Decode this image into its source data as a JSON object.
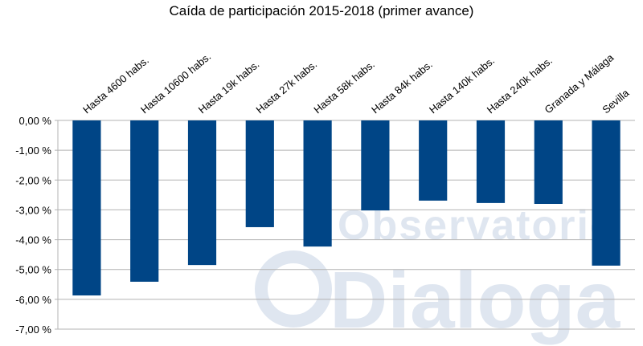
{
  "chart_data": {
    "type": "bar",
    "title": "Caída de participación 2015-2018 (primer avance)",
    "categories": [
      "Hasta 4600 habs.",
      "Hasta 10600 habs.",
      "Hasta 19k habs.",
      "Hasta 27k habs.",
      "Hasta 58k habs.",
      "Hasta 84k habs.",
      "Hasta 140k habs.",
      "Hasta 240k habs.",
      "Granada y Málaga",
      "Sevilla"
    ],
    "values": [
      -5.87,
      -5.41,
      -4.85,
      -3.58,
      -4.23,
      -3.02,
      -2.69,
      -2.77,
      -2.8,
      -4.87
    ],
    "color": "#004586",
    "ylim": [
      -7,
      0
    ],
    "yticks": [
      {
        "value": 0,
        "label": "0,00 %"
      },
      {
        "value": -1,
        "label": "-1,00 %"
      },
      {
        "value": -2,
        "label": "-2,00 %"
      },
      {
        "value": -3,
        "label": "-3,00 %"
      },
      {
        "value": -4,
        "label": "-4,00 %"
      },
      {
        "value": -5,
        "label": "-5,00 %"
      },
      {
        "value": -6,
        "label": "-6,00 %"
      },
      {
        "value": -7,
        "label": "-7,00 %"
      }
    ],
    "grid": true,
    "watermark": [
      "Observatorio",
      "Dialoga"
    ]
  }
}
